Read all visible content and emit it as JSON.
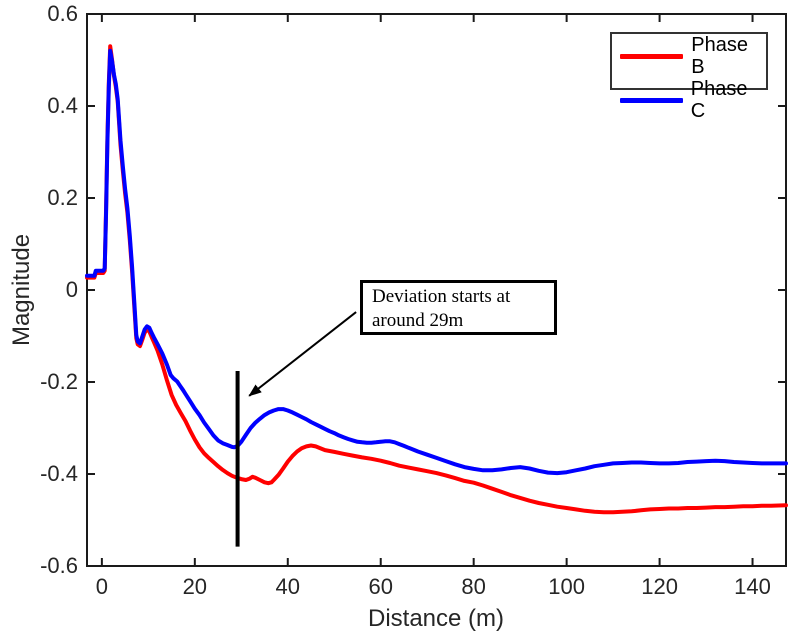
{
  "figure": {
    "background": "#ffffff",
    "axis_color": "#262626",
    "spine_color": "#1a1a1a"
  },
  "chart_data": {
    "type": "line",
    "title": "",
    "xlabel": "Distance (m)",
    "ylabel": "Magnitude",
    "xlim": [
      -3.2,
      147.2
    ],
    "ylim": [
      -0.6,
      0.6
    ],
    "x_ticks": [
      0,
      20,
      40,
      60,
      80,
      100,
      120,
      140
    ],
    "y_ticks": [
      -0.6,
      -0.4,
      -0.2,
      0,
      0.2,
      0.4,
      0.6
    ],
    "grid": false,
    "box": true,
    "legend_position": "top-right",
    "series": [
      {
        "name": "Phase B",
        "color": "#ff0000",
        "line_width": 4,
        "points": [
          [
            -3.2,
            0.027
          ],
          [
            -1.6,
            0.027
          ],
          [
            -1.3,
            0.037
          ],
          [
            0.3,
            0.037
          ],
          [
            0.6,
            0.042
          ],
          [
            0.9,
            0.18
          ],
          [
            1.2,
            0.33
          ],
          [
            1.5,
            0.45
          ],
          [
            1.8,
            0.53
          ],
          [
            2.2,
            0.5
          ],
          [
            2.6,
            0.465
          ],
          [
            3,
            0.442
          ],
          [
            3.4,
            0.41
          ],
          [
            4,
            0.315
          ],
          [
            4.5,
            0.26
          ],
          [
            5,
            0.21
          ],
          [
            5.5,
            0.168
          ],
          [
            6,
            0.108
          ],
          [
            6.5,
            0.04
          ],
          [
            7,
            -0.04
          ],
          [
            7.4,
            -0.105
          ],
          [
            7.7,
            -0.118
          ],
          [
            8.2,
            -0.122
          ],
          [
            8.7,
            -0.108
          ],
          [
            9.2,
            -0.093
          ],
          [
            9.7,
            -0.086
          ],
          [
            10.2,
            -0.09
          ],
          [
            10.7,
            -0.102
          ],
          [
            11.2,
            -0.113
          ],
          [
            12,
            -0.132
          ],
          [
            13,
            -0.162
          ],
          [
            14,
            -0.196
          ],
          [
            15,
            -0.228
          ],
          [
            16,
            -0.25
          ],
          [
            17,
            -0.268
          ],
          [
            18,
            -0.285
          ],
          [
            19,
            -0.306
          ],
          [
            20,
            -0.325
          ],
          [
            21,
            -0.342
          ],
          [
            22,
            -0.355
          ],
          [
            23,
            -0.365
          ],
          [
            24,
            -0.374
          ],
          [
            25,
            -0.383
          ],
          [
            26,
            -0.391
          ],
          [
            27,
            -0.398
          ],
          [
            28,
            -0.404
          ],
          [
            29,
            -0.408
          ],
          [
            30,
            -0.411
          ],
          [
            31,
            -0.413
          ],
          [
            31.8,
            -0.41
          ],
          [
            32.4,
            -0.406
          ],
          [
            33,
            -0.408
          ],
          [
            34,
            -0.413
          ],
          [
            35,
            -0.418
          ],
          [
            35.8,
            -0.42
          ],
          [
            36.5,
            -0.418
          ],
          [
            37,
            -0.413
          ],
          [
            38,
            -0.402
          ],
          [
            39,
            -0.388
          ],
          [
            40,
            -0.373
          ],
          [
            41,
            -0.361
          ],
          [
            42,
            -0.351
          ],
          [
            43,
            -0.344
          ],
          [
            44,
            -0.34
          ],
          [
            45,
            -0.338
          ],
          [
            46,
            -0.34
          ],
          [
            47,
            -0.344
          ],
          [
            48,
            -0.348
          ],
          [
            50,
            -0.352
          ],
          [
            52,
            -0.356
          ],
          [
            54,
            -0.36
          ],
          [
            56,
            -0.364
          ],
          [
            58,
            -0.367
          ],
          [
            60,
            -0.371
          ],
          [
            62,
            -0.376
          ],
          [
            64,
            -0.382
          ],
          [
            66,
            -0.386
          ],
          [
            68,
            -0.39
          ],
          [
            70,
            -0.394
          ],
          [
            72,
            -0.398
          ],
          [
            74,
            -0.403
          ],
          [
            76,
            -0.409
          ],
          [
            78,
            -0.415
          ],
          [
            80,
            -0.419
          ],
          [
            82,
            -0.425
          ],
          [
            84,
            -0.432
          ],
          [
            86,
            -0.439
          ],
          [
            88,
            -0.446
          ],
          [
            90,
            -0.452
          ],
          [
            92,
            -0.458
          ],
          [
            94,
            -0.463
          ],
          [
            96,
            -0.467
          ],
          [
            98,
            -0.471
          ],
          [
            100,
            -0.474
          ],
          [
            102,
            -0.477
          ],
          [
            104,
            -0.48
          ],
          [
            106,
            -0.482
          ],
          [
            108,
            -0.483
          ],
          [
            110,
            -0.483
          ],
          [
            112,
            -0.482
          ],
          [
            114,
            -0.481
          ],
          [
            116,
            -0.479
          ],
          [
            118,
            -0.477
          ],
          [
            120,
            -0.476
          ],
          [
            122,
            -0.475
          ],
          [
            124,
            -0.475
          ],
          [
            126,
            -0.474
          ],
          [
            128,
            -0.474
          ],
          [
            130,
            -0.473
          ],
          [
            132,
            -0.472
          ],
          [
            134,
            -0.472
          ],
          [
            136,
            -0.471
          ],
          [
            138,
            -0.47
          ],
          [
            140,
            -0.47
          ],
          [
            142,
            -0.469
          ],
          [
            144,
            -0.469
          ],
          [
            147.2,
            -0.468
          ]
        ]
      },
      {
        "name": "Phase C",
        "color": "#0000ff",
        "line_width": 4,
        "points": [
          [
            -3.2,
            0.031
          ],
          [
            -1.6,
            0.031
          ],
          [
            -1.3,
            0.042
          ],
          [
            0.3,
            0.042
          ],
          [
            0.6,
            0.047
          ],
          [
            0.9,
            0.17
          ],
          [
            1.2,
            0.32
          ],
          [
            1.5,
            0.44
          ],
          [
            1.8,
            0.52
          ],
          [
            2.2,
            0.497
          ],
          [
            2.6,
            0.468
          ],
          [
            3,
            0.448
          ],
          [
            3.4,
            0.415
          ],
          [
            4,
            0.325
          ],
          [
            4.5,
            0.27
          ],
          [
            5,
            0.22
          ],
          [
            5.5,
            0.178
          ],
          [
            6,
            0.118
          ],
          [
            6.5,
            0.05
          ],
          [
            7,
            -0.03
          ],
          [
            7.4,
            -0.098
          ],
          [
            7.7,
            -0.112
          ],
          [
            8.2,
            -0.116
          ],
          [
            8.7,
            -0.101
          ],
          [
            9.2,
            -0.086
          ],
          [
            9.7,
            -0.079
          ],
          [
            10.2,
            -0.082
          ],
          [
            10.7,
            -0.093
          ],
          [
            11.2,
            -0.103
          ],
          [
            12,
            -0.118
          ],
          [
            13,
            -0.138
          ],
          [
            14,
            -0.162
          ],
          [
            14.8,
            -0.185
          ],
          [
            15.4,
            -0.192
          ],
          [
            16.2,
            -0.199
          ],
          [
            16.8,
            -0.208
          ],
          [
            17.5,
            -0.218
          ],
          [
            18,
            -0.226
          ],
          [
            19,
            -0.242
          ],
          [
            20,
            -0.258
          ],
          [
            21,
            -0.272
          ],
          [
            22,
            -0.288
          ],
          [
            23,
            -0.302
          ],
          [
            24,
            -0.316
          ],
          [
            25,
            -0.327
          ],
          [
            26,
            -0.333
          ],
          [
            27,
            -0.337
          ],
          [
            28,
            -0.341
          ],
          [
            28.5,
            -0.342
          ],
          [
            29.2,
            -0.339
          ],
          [
            30,
            -0.33
          ],
          [
            31,
            -0.315
          ],
          [
            32,
            -0.3
          ],
          [
            33,
            -0.289
          ],
          [
            34,
            -0.28
          ],
          [
            35,
            -0.272
          ],
          [
            36,
            -0.266
          ],
          [
            37,
            -0.262
          ],
          [
            38,
            -0.259
          ],
          [
            39,
            -0.259
          ],
          [
            40,
            -0.262
          ],
          [
            41,
            -0.266
          ],
          [
            42,
            -0.271
          ],
          [
            43,
            -0.276
          ],
          [
            44,
            -0.281
          ],
          [
            45,
            -0.287
          ],
          [
            46,
            -0.292
          ],
          [
            47,
            -0.297
          ],
          [
            48,
            -0.302
          ],
          [
            49,
            -0.307
          ],
          [
            50,
            -0.311
          ],
          [
            51,
            -0.316
          ],
          [
            52,
            -0.32
          ],
          [
            53,
            -0.324
          ],
          [
            54,
            -0.327
          ],
          [
            55,
            -0.33
          ],
          [
            56,
            -0.331
          ],
          [
            57,
            -0.332
          ],
          [
            58,
            -0.332
          ],
          [
            59,
            -0.331
          ],
          [
            60,
            -0.33
          ],
          [
            61,
            -0.329
          ],
          [
            62,
            -0.329
          ],
          [
            63,
            -0.331
          ],
          [
            64,
            -0.335
          ],
          [
            65,
            -0.339
          ],
          [
            66,
            -0.343
          ],
          [
            67,
            -0.347
          ],
          [
            68,
            -0.351
          ],
          [
            70,
            -0.358
          ],
          [
            72,
            -0.365
          ],
          [
            74,
            -0.372
          ],
          [
            76,
            -0.379
          ],
          [
            78,
            -0.385
          ],
          [
            80,
            -0.389
          ],
          [
            82,
            -0.392
          ],
          [
            84,
            -0.392
          ],
          [
            86,
            -0.39
          ],
          [
            88,
            -0.387
          ],
          [
            90,
            -0.385
          ],
          [
            92,
            -0.388
          ],
          [
            94,
            -0.393
          ],
          [
            96,
            -0.397
          ],
          [
            98,
            -0.398
          ],
          [
            100,
            -0.396
          ],
          [
            102,
            -0.392
          ],
          [
            104,
            -0.388
          ],
          [
            106,
            -0.383
          ],
          [
            108,
            -0.38
          ],
          [
            110,
            -0.377
          ],
          [
            112,
            -0.376
          ],
          [
            114,
            -0.375
          ],
          [
            116,
            -0.375
          ],
          [
            118,
            -0.376
          ],
          [
            120,
            -0.377
          ],
          [
            122,
            -0.377
          ],
          [
            124,
            -0.376
          ],
          [
            126,
            -0.374
          ],
          [
            128,
            -0.373
          ],
          [
            130,
            -0.372
          ],
          [
            132,
            -0.371
          ],
          [
            134,
            -0.372
          ],
          [
            136,
            -0.374
          ],
          [
            138,
            -0.375
          ],
          [
            140,
            -0.376
          ],
          [
            142,
            -0.377
          ],
          [
            144,
            -0.377
          ],
          [
            147.2,
            -0.377
          ]
        ]
      }
    ],
    "annotations": {
      "marker_line": {
        "x": 29.2,
        "y_from": -0.558,
        "y_to": -0.176,
        "color": "#000000",
        "width": 4
      },
      "arrow": {
        "from_xy": [
          54.7,
          -0.048
        ],
        "to_xy": [
          31.7,
          -0.23
        ],
        "color": "#000000"
      },
      "textbox_lines": [
        "Deviation starts at",
        "around 29m"
      ]
    }
  },
  "axes": {
    "xlabel": "Distance (m)",
    "ylabel": "Magnitude",
    "x_tick_labels": [
      "0",
      "20",
      "40",
      "60",
      "80",
      "100",
      "120",
      "140"
    ],
    "y_tick_labels": [
      "-0.6",
      "-0.4",
      "-0.2",
      "0",
      "0.2",
      "0.4",
      "0.6"
    ]
  },
  "legend": {
    "items": [
      {
        "label": "Phase B",
        "color": "#ff0000"
      },
      {
        "label": "Phase C",
        "color": "#0000ff"
      }
    ]
  },
  "annotation": {
    "line1": "Deviation starts at",
    "line2": "around 29m"
  }
}
